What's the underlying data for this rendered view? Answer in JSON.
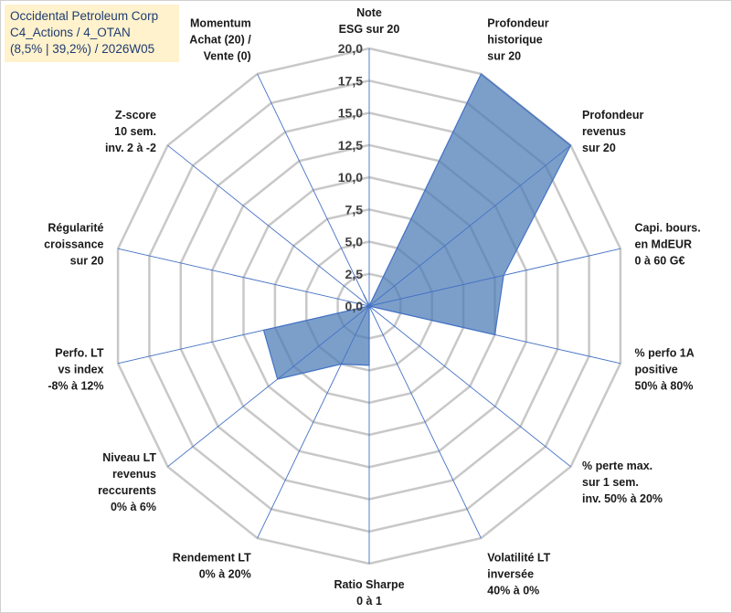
{
  "title": {
    "line1": "Occidental Petroleum Corp",
    "line2": "C4_Actions / 4_OTAN",
    "line3": "(8,5% | 39,2%) / 2026W05"
  },
  "colors": {
    "fill": "#4a7ab5",
    "stroke": "#4472c4",
    "grid": "#c8c8c8",
    "spoke": "#4472c4",
    "title_bg": "#fff2cc",
    "title_text": "#1f3b73"
  },
  "chart_data": {
    "type": "radar",
    "title": "Occidental Petroleum Corp",
    "rmax": 20,
    "rmin": 0,
    "ticks": [
      "0,0",
      "2,5",
      "5,0",
      "7,5",
      "10,0",
      "12,5",
      "15,0",
      "17,5",
      "20,0"
    ],
    "tick_values": [
      0,
      2.5,
      5,
      7.5,
      10,
      12.5,
      15,
      17.5,
      20
    ],
    "categories": [
      [
        "Note",
        "ESG sur 20"
      ],
      [
        "Profondeur",
        "historique",
        "sur 20"
      ],
      [
        "Profondeur",
        "revenus",
        "sur 20"
      ],
      [
        "Capi. bours.",
        "en MdEUR",
        "0 à 60 G€"
      ],
      [
        "% perfo 1A",
        "positive",
        "50% à 80%"
      ],
      [
        "% perte max.",
        "sur 1 sem.",
        "inv. 50% à 20%"
      ],
      [
        "Volatilité LT",
        "inversée",
        "40% à 0%"
      ],
      [
        "Ratio Sharpe",
        "0 à 1"
      ],
      [
        "Rendement LT",
        "0% à 20%"
      ],
      [
        "Niveau LT",
        "revenus",
        "reccurents",
        "0% à 6%"
      ],
      [
        "Perfo. LT",
        "vs index",
        "-8% à 12%"
      ],
      [
        "Régularité",
        "croissance",
        "sur 20"
      ],
      [
        "Z-score",
        "10 sem.",
        "inv. 2 à -2"
      ],
      [
        "Momentum",
        "Achat (20) /",
        "Vente (0)"
      ]
    ],
    "series": [
      {
        "name": "Occidental Petroleum Corp",
        "values": [
          0.0,
          20.0,
          20.0,
          10.7,
          10.0,
          0.0,
          0.0,
          4.6,
          5.0,
          9.1,
          8.4,
          0.0,
          0.0,
          1.0
        ]
      }
    ]
  }
}
